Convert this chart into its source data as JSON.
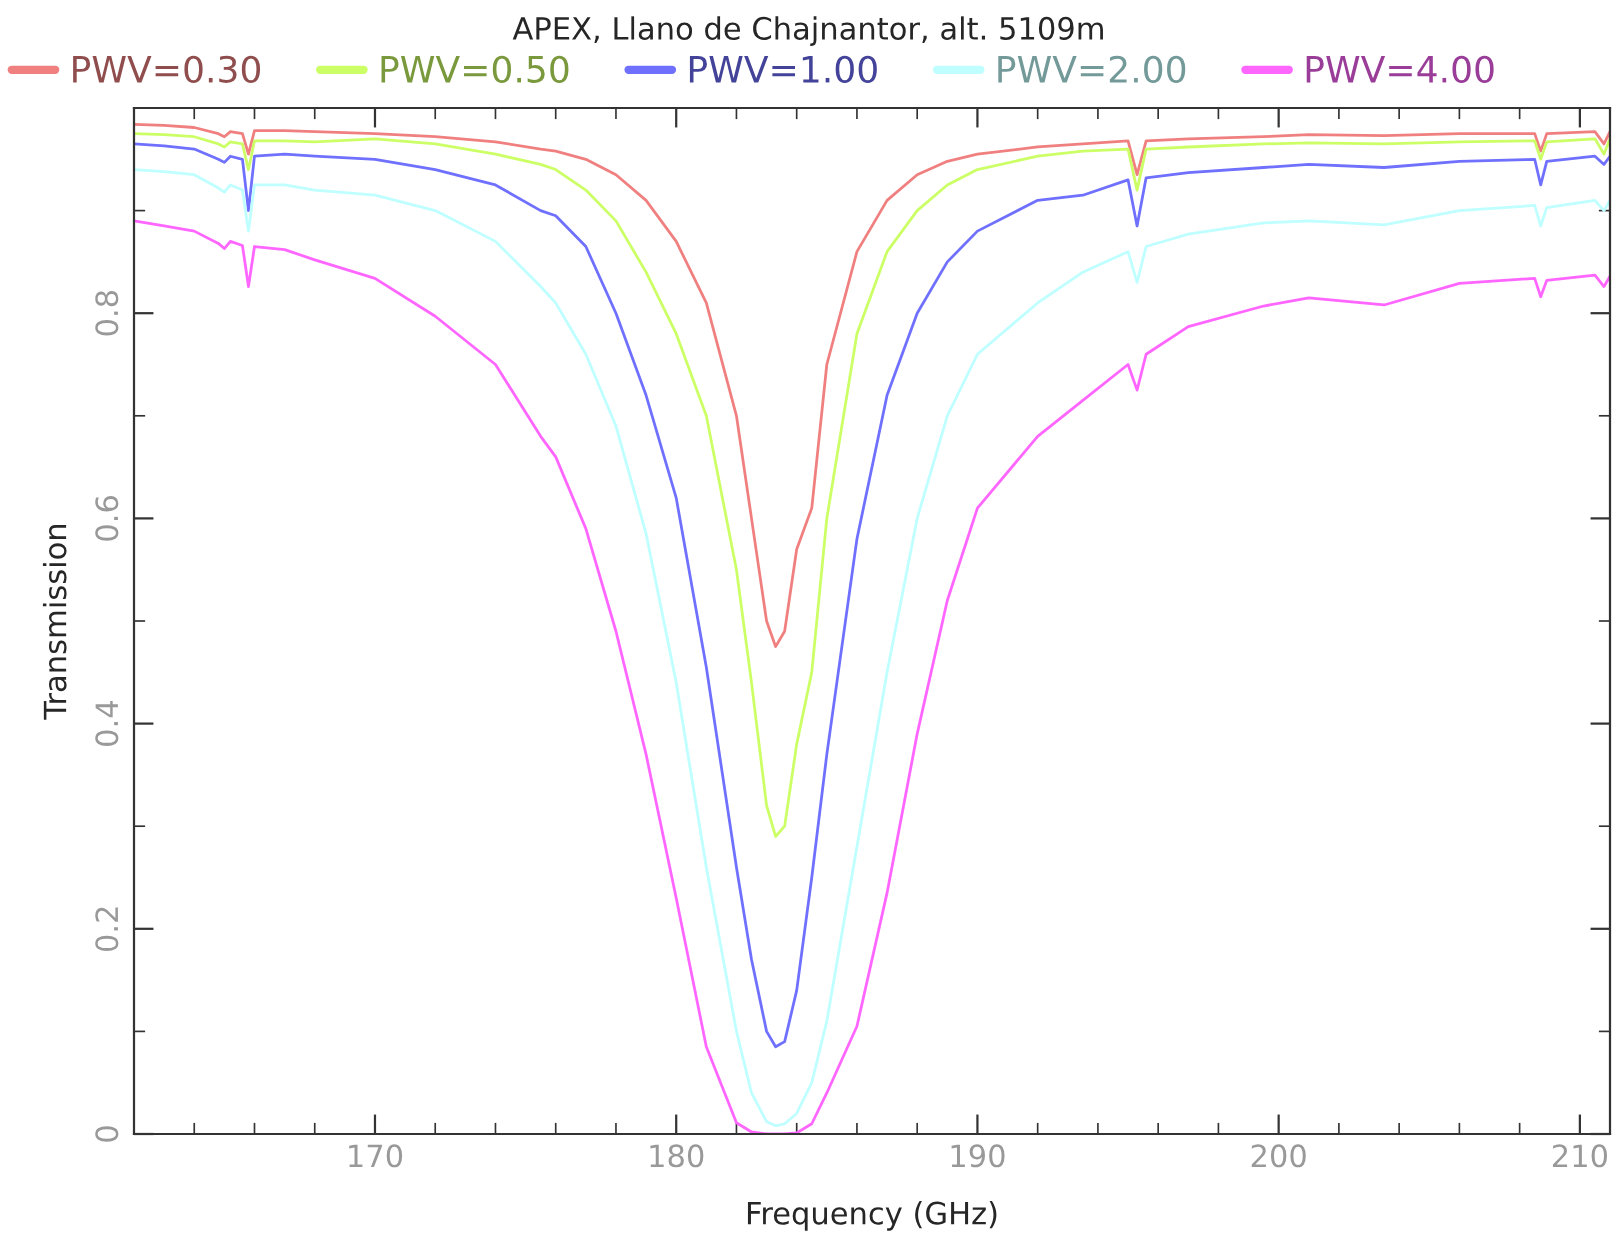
{
  "chart_data": {
    "type": "line",
    "title": "APEX, Llano de Chajnantor, alt. 5109m",
    "xlabel": "Frequency (GHz)",
    "ylabel": "Transmission",
    "x": [
      162,
      163,
      164,
      164.8,
      165.0,
      165.2,
      165.6,
      165.8,
      166,
      167,
      168,
      170,
      172,
      174,
      175.5,
      176,
      177,
      178,
      179,
      180,
      181,
      182,
      182.5,
      183,
      183.3,
      183.6,
      184,
      184.5,
      185,
      186,
      187,
      188,
      189,
      190,
      192,
      193.5,
      195,
      195.3,
      195.6,
      197,
      199.5,
      201,
      203.5,
      206,
      208.5,
      208.7,
      208.9,
      210.5,
      210.8,
      211
    ],
    "series": [
      {
        "name": "PWV=0.30",
        "color": "#f08080",
        "values": [
          0.984,
          0.983,
          0.981,
          0.975,
          0.972,
          0.977,
          0.975,
          0.955,
          0.978,
          0.978,
          0.977,
          0.975,
          0.972,
          0.967,
          0.96,
          0.958,
          0.95,
          0.935,
          0.91,
          0.87,
          0.81,
          0.7,
          0.6,
          0.5,
          0.475,
          0.49,
          0.57,
          0.61,
          0.75,
          0.86,
          0.91,
          0.935,
          0.948,
          0.955,
          0.962,
          0.965,
          0.968,
          0.935,
          0.968,
          0.97,
          0.972,
          0.974,
          0.973,
          0.975,
          0.975,
          0.958,
          0.975,
          0.977,
          0.965,
          0.977
        ]
      },
      {
        "name": "PWV=0.50",
        "color": "#ccff66",
        "values": [
          0.975,
          0.974,
          0.972,
          0.965,
          0.962,
          0.967,
          0.965,
          0.94,
          0.968,
          0.968,
          0.967,
          0.97,
          0.965,
          0.955,
          0.945,
          0.94,
          0.92,
          0.89,
          0.84,
          0.78,
          0.7,
          0.55,
          0.44,
          0.32,
          0.29,
          0.3,
          0.38,
          0.45,
          0.6,
          0.78,
          0.86,
          0.9,
          0.925,
          0.94,
          0.953,
          0.958,
          0.96,
          0.92,
          0.96,
          0.962,
          0.965,
          0.966,
          0.965,
          0.967,
          0.968,
          0.95,
          0.967,
          0.97,
          0.955,
          0.97
        ]
      },
      {
        "name": "PWV=1.00",
        "color": "#7070ff",
        "values": [
          0.965,
          0.963,
          0.96,
          0.95,
          0.947,
          0.953,
          0.95,
          0.9,
          0.953,
          0.955,
          0.953,
          0.95,
          0.94,
          0.925,
          0.9,
          0.895,
          0.865,
          0.8,
          0.72,
          0.62,
          0.455,
          0.26,
          0.17,
          0.1,
          0.085,
          0.09,
          0.14,
          0.25,
          0.37,
          0.58,
          0.72,
          0.8,
          0.85,
          0.88,
          0.91,
          0.915,
          0.93,
          0.885,
          0.932,
          0.937,
          0.942,
          0.945,
          0.942,
          0.948,
          0.95,
          0.925,
          0.948,
          0.953,
          0.945,
          0.953
        ]
      },
      {
        "name": "PWV=2.00",
        "color": "#bfffff",
        "values": [
          0.94,
          0.938,
          0.935,
          0.922,
          0.918,
          0.925,
          0.92,
          0.88,
          0.925,
          0.925,
          0.92,
          0.915,
          0.9,
          0.87,
          0.826,
          0.81,
          0.76,
          0.69,
          0.585,
          0.44,
          0.26,
          0.1,
          0.04,
          0.012,
          0.008,
          0.01,
          0.02,
          0.05,
          0.11,
          0.28,
          0.45,
          0.6,
          0.7,
          0.76,
          0.81,
          0.84,
          0.86,
          0.83,
          0.865,
          0.877,
          0.888,
          0.89,
          0.886,
          0.9,
          0.905,
          0.885,
          0.903,
          0.91,
          0.9,
          0.91
        ]
      },
      {
        "name": "PWV=4.00",
        "color": "#ff66ff",
        "values": [
          0.89,
          0.885,
          0.88,
          0.868,
          0.863,
          0.87,
          0.866,
          0.826,
          0.865,
          0.862,
          0.852,
          0.834,
          0.797,
          0.75,
          0.68,
          0.66,
          0.59,
          0.49,
          0.37,
          0.23,
          0.085,
          0.011,
          0.002,
          0,
          0,
          0,
          0.001,
          0.01,
          0.04,
          0.105,
          0.235,
          0.39,
          0.52,
          0.61,
          0.68,
          0.715,
          0.75,
          0.725,
          0.76,
          0.787,
          0.807,
          0.815,
          0.808,
          0.829,
          0.834,
          0.816,
          0.832,
          0.837,
          0.826,
          0.836
        ]
      }
    ],
    "xlim": [
      162,
      211
    ],
    "xticks": [
      170,
      180,
      190,
      200,
      210
    ],
    "ylim": [
      0,
      1
    ],
    "yticks": [
      0,
      0.2,
      0.4,
      0.6,
      0.8
    ],
    "grid": false,
    "legend": "top",
    "line_style": "solid",
    "marker": "none"
  }
}
